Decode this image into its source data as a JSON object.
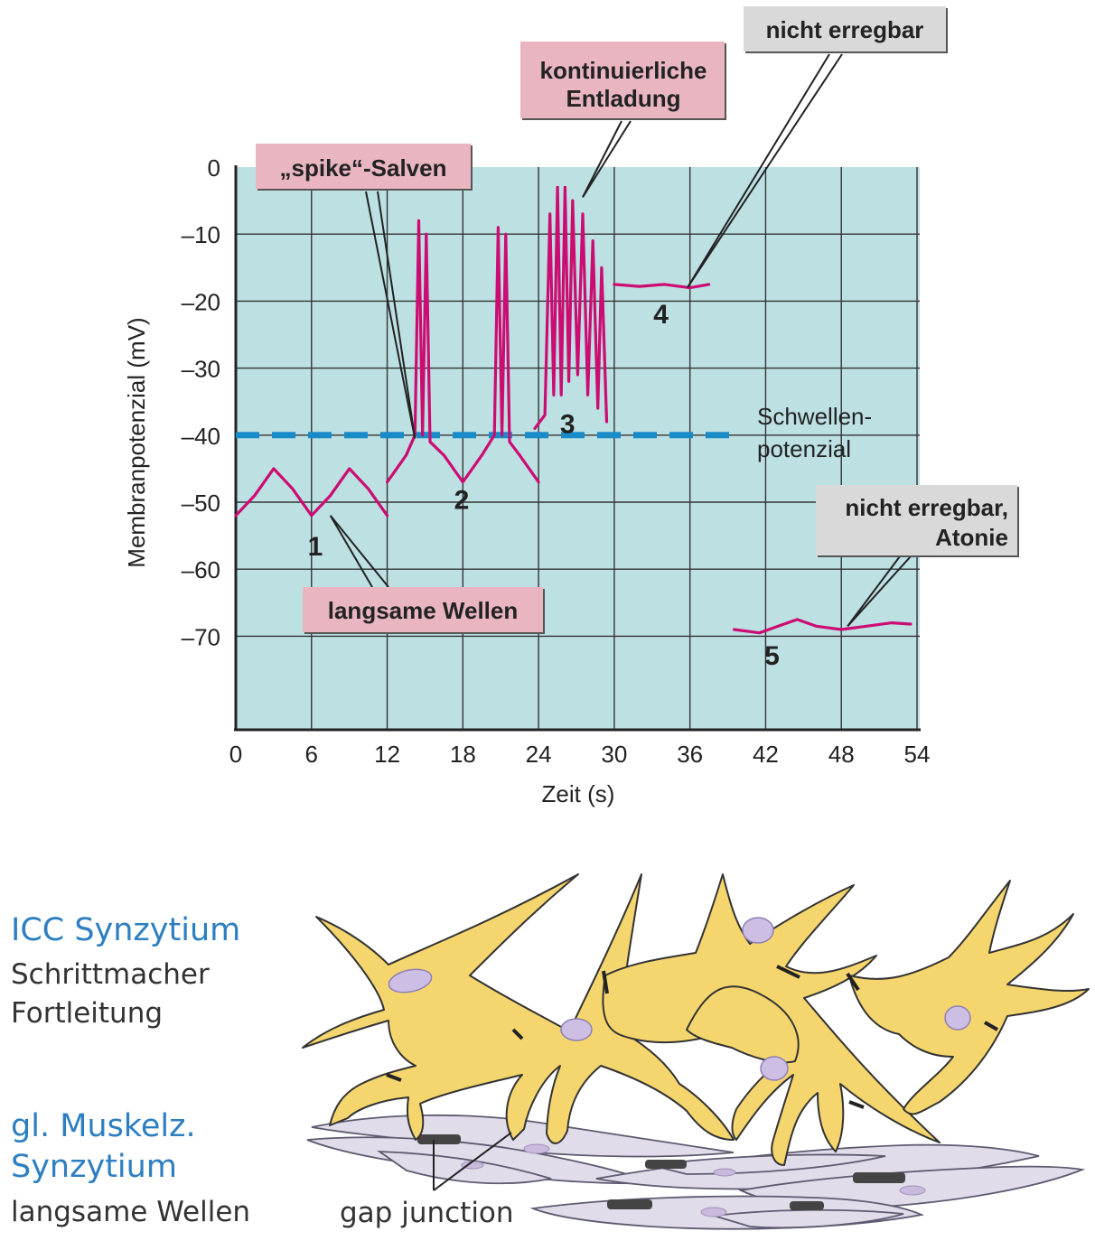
{
  "chart_data": {
    "type": "line",
    "xlabel": "Zeit (s)",
    "ylabel": "Membranpotenzial (mV)",
    "xlim": [
      0,
      54
    ],
    "ylim": [
      -80,
      0
    ],
    "x_ticks": [
      "0",
      "6",
      "12",
      "18",
      "24",
      "30",
      "36",
      "42",
      "48",
      "54"
    ],
    "y_ticks": [
      "0",
      "–10",
      "–20",
      "–30",
      "–40",
      "–50",
      "–60",
      "–70"
    ],
    "threshold": {
      "value": -40,
      "label_line1": "Schwellen-",
      "label_line2": "potenzial"
    },
    "series": [
      {
        "id": "1",
        "x": [
          0,
          1.5,
          3,
          4.5,
          6,
          7.5,
          9,
          10.5,
          12
        ],
        "y": [
          -52,
          -49,
          -45,
          -48,
          -52,
          -49,
          -45,
          -48,
          -52
        ]
      },
      {
        "id": "2",
        "x": [
          12,
          13.5,
          14.2,
          14.5,
          14.8,
          15.1,
          15.4,
          16.5,
          18,
          19.5,
          20.5,
          20.8,
          21.1,
          21.4,
          21.7,
          22.5,
          24
        ],
        "y": [
          -47,
          -43,
          -40,
          -8,
          -40,
          -10,
          -41,
          -43,
          -47,
          -43,
          -40,
          -9,
          -40,
          -10,
          -41,
          -43,
          -47
        ]
      },
      {
        "id": "3",
        "x": [
          23.7,
          24.5,
          24.9,
          25.2,
          25.5,
          25.8,
          26.1,
          26.4,
          26.7,
          27.1,
          27.5,
          27.9,
          28.3,
          28.7,
          29.0,
          29.4
        ],
        "y": [
          -39,
          -37,
          -7,
          -34,
          -3,
          -34,
          -3,
          -32,
          -5,
          -31,
          -7,
          -34,
          -11,
          -36,
          -15,
          -38
        ]
      },
      {
        "id": "4",
        "x": [
          30,
          32,
          34,
          36,
          37.5
        ],
        "y": [
          -17.5,
          -17.8,
          -17.5,
          -18,
          -17.5
        ]
      },
      {
        "id": "5",
        "x": [
          39.5,
          41.5,
          43,
          44.5,
          46,
          48,
          50,
          52,
          53.5
        ],
        "y": [
          -69,
          -69.5,
          -68.5,
          -67.5,
          -68.5,
          -69,
          -68.5,
          -68,
          -68.2
        ]
      }
    ],
    "curve_numbers": [
      {
        "text": "1",
        "x": 6.3,
        "y": -56.5
      },
      {
        "text": "2",
        "x": 17.9,
        "y": -49.5
      },
      {
        "text": "3",
        "x": 26.3,
        "y": -38.2
      },
      {
        "text": "4",
        "x": 33.7,
        "y": -21.8
      },
      {
        "text": "5",
        "x": 42.5,
        "y": -72.8
      }
    ],
    "annotations": [
      {
        "id": "langsame",
        "lines": [
          "langsame Wellen"
        ],
        "style": "pink",
        "points_to": {
          "x": 7.5,
          "y": -52
        }
      },
      {
        "id": "spike",
        "lines": [
          "„spike“-Salven"
        ],
        "style": "pink",
        "points_to": {
          "x": 14.2,
          "y": -40.5
        }
      },
      {
        "id": "kontinuierlich",
        "lines": [
          "kontinuierliche",
          "Entladung"
        ],
        "style": "pink",
        "points_to": {
          "x": 27.5,
          "y": -4.5
        }
      },
      {
        "id": "nicht-erregbar",
        "lines": [
          "nicht erregbar"
        ],
        "style": "gray",
        "points_to": {
          "x": 35.8,
          "y": -18
        }
      },
      {
        "id": "atonie",
        "lines": [
          "nicht erregbar,",
          "Atonie"
        ],
        "style": "gray",
        "points_to": {
          "x": 48.5,
          "y": -68.5
        }
      }
    ]
  },
  "diagram": {
    "icc_title": "ICC Synzytium",
    "icc_line1": "Schrittmacher",
    "icc_line2": "Fortleitung",
    "smc_title1": "gl. Muskelz.",
    "smc_title2": "Synzytium",
    "smc_line": "langsame Wellen",
    "gap_label": "gap junction"
  },
  "colors": {
    "plot_background": "#bde0e3",
    "trace": "#cc0c72",
    "threshold": "#1a8bc9",
    "pink_box": "#e8b5c1",
    "gray_box": "#d9d9d9",
    "icc_cell": "#f5d66e",
    "muscle_cell": "#e0dcea"
  }
}
